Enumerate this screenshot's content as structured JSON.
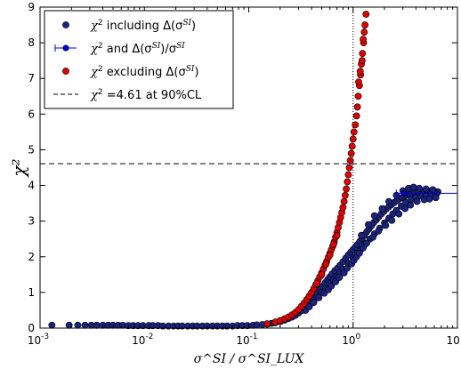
{
  "chart_data": {
    "type": "scatter",
    "title": "",
    "xlabel": "σ^SI / σ^SI_LUX",
    "ylabel": "χ²",
    "xscale": "log",
    "xlim": [
      0.001,
      10
    ],
    "ylim": [
      0,
      9
    ],
    "x_ticks": [
      0.001,
      0.01,
      0.1,
      1,
      10
    ],
    "x_tick_labels": [
      {
        "base": "10",
        "exp": "-3"
      },
      {
        "base": "10",
        "exp": "-2"
      },
      {
        "base": "10",
        "exp": "-1"
      },
      {
        "base": "10",
        "exp": "0"
      },
      {
        "base": "10",
        "exp": "1"
      }
    ],
    "y_ticks": [
      0,
      1,
      2,
      3,
      4,
      5,
      6,
      7,
      8,
      9
    ],
    "y_tick_labels": [
      "0",
      "1",
      "2",
      "3",
      "4",
      "5",
      "6",
      "7",
      "8",
      "9"
    ],
    "grid": false,
    "legend_placement": "top-left",
    "reference_lines": [
      {
        "orientation": "horizontal",
        "value": 4.61,
        "style": "dashed",
        "color": "#000000"
      },
      {
        "orientation": "vertical",
        "value": 1.0,
        "style": "dotted",
        "color": "#000000"
      }
    ],
    "legend": [
      {
        "marker": "dot",
        "color": "#1a237e",
        "text_pre": "χ",
        "text_sup": "2",
        "text_mid": " including Δ(σ",
        "text_sup2": "SI",
        "text_post": ")"
      },
      {
        "marker": "errorbar",
        "color": "#0000cc",
        "text_pre": "χ",
        "text_sup": "2",
        "text_mid": " and Δ(σ",
        "text_sup2": "SI",
        "text_post": ")/σ",
        "text_sup3": "SI"
      },
      {
        "marker": "dot",
        "color": "#dd0000",
        "text_pre": "χ",
        "text_sup": "2",
        "text_mid": " excluding Δ(σ",
        "text_sup2": "SI",
        "text_post": ")"
      },
      {
        "marker": "dashed",
        "color": "#000000",
        "text_pre": "χ",
        "text_sup": "2",
        "text_mid": " =4.61 at 90%CL",
        "text_sup2": "",
        "text_post": ""
      }
    ],
    "series": [
      {
        "name": "χ² including Δ(σ^SI)",
        "color": "#1a237e",
        "marker": "dot",
        "points": [
          [
            0.0013,
            0.08
          ],
          [
            0.0019,
            0.08
          ],
          [
            0.0023,
            0.08
          ],
          [
            0.0027,
            0.08
          ],
          [
            0.0031,
            0.08
          ],
          [
            0.0035,
            0.08
          ],
          [
            0.004,
            0.08
          ],
          [
            0.0045,
            0.08
          ],
          [
            0.005,
            0.08
          ],
          [
            0.0056,
            0.08
          ],
          [
            0.0062,
            0.08
          ],
          [
            0.007,
            0.07
          ],
          [
            0.0078,
            0.07
          ],
          [
            0.0087,
            0.07
          ],
          [
            0.0097,
            0.07
          ],
          [
            0.011,
            0.07
          ],
          [
            0.012,
            0.07
          ],
          [
            0.0135,
            0.07
          ],
          [
            0.015,
            0.06
          ],
          [
            0.017,
            0.06
          ],
          [
            0.019,
            0.06
          ],
          [
            0.021,
            0.06
          ],
          [
            0.023,
            0.06
          ],
          [
            0.026,
            0.06
          ],
          [
            0.029,
            0.06
          ],
          [
            0.032,
            0.06
          ],
          [
            0.036,
            0.06
          ],
          [
            0.04,
            0.06
          ],
          [
            0.045,
            0.06
          ],
          [
            0.05,
            0.06
          ],
          [
            0.056,
            0.06
          ],
          [
            0.062,
            0.06
          ],
          [
            0.07,
            0.06
          ],
          [
            0.078,
            0.07
          ],
          [
            0.087,
            0.07
          ],
          [
            0.097,
            0.07
          ],
          [
            0.11,
            0.08
          ],
          [
            0.12,
            0.09
          ],
          [
            0.135,
            0.1
          ],
          [
            0.15,
            0.11
          ],
          [
            0.165,
            0.13
          ],
          [
            0.18,
            0.15
          ],
          [
            0.2,
            0.18
          ],
          [
            0.22,
            0.22
          ],
          [
            0.24,
            0.27
          ],
          [
            0.26,
            0.31
          ],
          [
            0.28,
            0.36
          ],
          [
            0.3,
            0.42
          ],
          [
            0.32,
            0.49
          ],
          [
            0.34,
            0.56
          ],
          [
            0.36,
            0.64
          ],
          [
            0.38,
            0.72
          ],
          [
            0.4,
            0.8
          ],
          [
            0.42,
            0.88
          ],
          [
            0.45,
            0.97
          ],
          [
            0.48,
            1.07
          ],
          [
            0.51,
            1.17
          ],
          [
            0.54,
            1.27
          ],
          [
            0.57,
            1.36
          ],
          [
            0.6,
            1.44
          ],
          [
            0.63,
            1.52
          ],
          [
            0.67,
            1.61
          ],
          [
            0.71,
            1.68
          ],
          [
            0.75,
            1.76
          ],
          [
            0.8,
            1.86
          ],
          [
            0.85,
            1.96
          ],
          [
            0.9,
            2.05
          ],
          [
            0.95,
            2.13
          ],
          [
            1.0,
            2.2
          ],
          [
            1.05,
            2.27
          ],
          [
            1.1,
            2.34
          ],
          [
            1.16,
            2.43
          ],
          [
            1.22,
            2.52
          ],
          [
            1.28,
            2.6
          ],
          [
            1.35,
            2.7
          ],
          [
            1.42,
            2.78
          ],
          [
            1.5,
            2.87
          ],
          [
            1.58,
            2.96
          ],
          [
            1.67,
            3.04
          ],
          [
            1.76,
            3.12
          ],
          [
            1.86,
            3.2
          ],
          [
            1.97,
            3.27
          ],
          [
            2.08,
            3.34
          ],
          [
            2.2,
            3.4
          ],
          [
            2.33,
            3.46
          ],
          [
            2.47,
            3.52
          ],
          [
            2.62,
            3.57
          ],
          [
            2.78,
            3.62
          ],
          [
            2.95,
            3.66
          ],
          [
            3.1,
            3.7
          ],
          [
            3.3,
            3.73
          ],
          [
            3.5,
            3.75
          ],
          [
            3.7,
            3.78
          ],
          [
            3.9,
            3.8
          ],
          [
            4.2,
            3.81
          ],
          [
            4.5,
            3.82
          ],
          [
            4.8,
            3.83
          ],
          [
            5.1,
            3.83
          ],
          [
            5.5,
            3.84
          ],
          [
            6.0,
            3.84
          ],
          [
            6.5,
            3.82
          ],
          [
            0.4,
            0.7
          ],
          [
            0.45,
            0.86
          ],
          [
            0.5,
            1.0
          ],
          [
            0.55,
            1.12
          ],
          [
            0.6,
            1.25
          ],
          [
            0.65,
            1.36
          ],
          [
            0.7,
            1.46
          ],
          [
            0.75,
            1.55
          ],
          [
            0.8,
            1.65
          ],
          [
            0.9,
            1.82
          ],
          [
            1.0,
            1.97
          ],
          [
            1.1,
            2.1
          ],
          [
            1.2,
            2.22
          ],
          [
            1.3,
            2.35
          ],
          [
            1.45,
            2.5
          ],
          [
            1.6,
            2.64
          ],
          [
            1.8,
            2.8
          ],
          [
            2.0,
            2.95
          ],
          [
            2.2,
            3.08
          ],
          [
            2.4,
            3.2
          ],
          [
            2.6,
            3.3
          ],
          [
            2.9,
            3.42
          ],
          [
            3.2,
            3.52
          ],
          [
            3.6,
            3.6
          ],
          [
            4.0,
            3.66
          ],
          [
            4.5,
            3.7
          ],
          [
            5.0,
            3.72
          ],
          [
            5.6,
            3.75
          ],
          [
            6.3,
            3.76
          ],
          [
            1.2,
            2.6
          ],
          [
            1.4,
            2.9
          ],
          [
            1.6,
            3.15
          ],
          [
            1.9,
            3.35
          ],
          [
            2.2,
            3.55
          ],
          [
            2.6,
            3.72
          ],
          [
            3.0,
            3.85
          ],
          [
            3.4,
            3.92
          ],
          [
            3.8,
            3.95
          ],
          [
            4.3,
            3.92
          ],
          [
            5.0,
            3.9
          ],
          [
            5.8,
            3.88
          ],
          [
            0.35,
            0.5
          ],
          [
            0.38,
            0.6
          ],
          [
            0.42,
            0.72
          ],
          [
            0.47,
            0.85
          ],
          [
            0.53,
            0.98
          ],
          [
            0.58,
            1.08
          ],
          [
            0.62,
            1.18
          ],
          [
            0.68,
            1.3
          ],
          [
            0.74,
            1.42
          ],
          [
            0.82,
            1.55
          ],
          [
            0.88,
            1.68
          ],
          [
            0.97,
            1.8
          ],
          [
            1.02,
            1.9
          ],
          [
            1.08,
            2.0
          ],
          [
            1.15,
            2.1
          ],
          [
            1.25,
            2.25
          ],
          [
            1.35,
            2.38
          ],
          [
            1.55,
            2.55
          ],
          [
            1.75,
            2.72
          ],
          [
            2.05,
            2.88
          ],
          [
            2.35,
            3.02
          ],
          [
            2.75,
            3.2
          ],
          [
            3.15,
            3.35
          ],
          [
            3.55,
            3.45
          ],
          [
            4.1,
            3.55
          ],
          [
            4.8,
            3.6
          ],
          [
            5.4,
            3.62
          ],
          [
            6.2,
            3.66
          ]
        ]
      },
      {
        "name": "χ² and Δ(σ^SI)/σ^SI",
        "color": "#0000cc",
        "marker": "errorbar",
        "points": [
          [
            3.1,
            3.78
          ]
        ],
        "x_error": [
          [
            2.6,
            10.0
          ]
        ]
      },
      {
        "name": "χ² excluding Δ(σ^SI)",
        "color": "#dd0000",
        "marker": "dot",
        "points": [
          [
            0.15,
            0.12
          ],
          [
            0.18,
            0.17
          ],
          [
            0.2,
            0.21
          ],
          [
            0.22,
            0.26
          ],
          [
            0.24,
            0.31
          ],
          [
            0.26,
            0.37
          ],
          [
            0.28,
            0.44
          ],
          [
            0.3,
            0.52
          ],
          [
            0.32,
            0.61
          ],
          [
            0.34,
            0.7
          ],
          [
            0.36,
            0.8
          ],
          [
            0.38,
            0.9
          ],
          [
            0.4,
            1.0
          ],
          [
            0.42,
            1.11
          ],
          [
            0.44,
            1.22
          ],
          [
            0.46,
            1.33
          ],
          [
            0.48,
            1.44
          ],
          [
            0.5,
            1.55
          ],
          [
            0.52,
            1.66
          ],
          [
            0.54,
            1.77
          ],
          [
            0.56,
            1.88
          ],
          [
            0.58,
            1.99
          ],
          [
            0.6,
            2.1
          ],
          [
            0.62,
            2.2
          ],
          [
            0.64,
            2.3
          ],
          [
            0.66,
            2.42
          ],
          [
            0.68,
            2.55
          ],
          [
            0.7,
            2.68
          ],
          [
            0.72,
            2.82
          ],
          [
            0.74,
            2.96
          ],
          [
            0.76,
            3.1
          ],
          [
            0.78,
            3.24
          ],
          [
            0.8,
            3.38
          ],
          [
            0.82,
            3.55
          ],
          [
            0.84,
            3.72
          ],
          [
            0.86,
            3.9
          ],
          [
            0.88,
            4.1
          ],
          [
            0.9,
            4.3
          ],
          [
            0.92,
            4.5
          ],
          [
            0.94,
            4.7
          ],
          [
            0.96,
            4.9
          ],
          [
            0.98,
            5.1
          ],
          [
            1.0,
            5.3
          ],
          [
            1.02,
            5.5
          ],
          [
            1.05,
            5.7
          ],
          [
            1.08,
            5.95
          ],
          [
            1.1,
            6.2
          ],
          [
            1.12,
            6.5
          ],
          [
            1.15,
            6.8
          ],
          [
            1.18,
            7.1
          ],
          [
            1.2,
            7.4
          ],
          [
            1.23,
            7.7
          ],
          [
            1.26,
            8.0
          ],
          [
            1.28,
            8.3
          ],
          [
            1.3,
            8.5
          ],
          [
            1.33,
            8.8
          ],
          [
            0.45,
            1.25
          ],
          [
            0.5,
            1.5
          ],
          [
            0.55,
            1.8
          ],
          [
            0.6,
            2.05
          ],
          [
            0.65,
            2.35
          ],
          [
            0.7,
            2.6
          ],
          [
            1.13,
            6.9
          ],
          [
            1.17,
            7.2
          ],
          [
            1.22,
            7.5
          ],
          [
            1.25,
            8.1
          ]
        ]
      }
    ]
  }
}
